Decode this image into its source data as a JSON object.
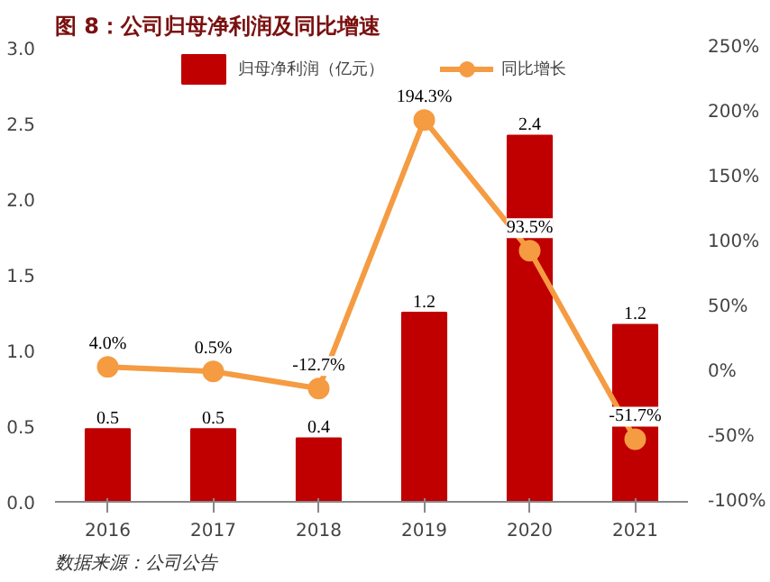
{
  "chart_data": {
    "type": "bar",
    "title": "图 8：公司归母净利润及同比增速",
    "categories": [
      "2016",
      "2017",
      "2018",
      "2019",
      "2020",
      "2021"
    ],
    "series": [
      {
        "name": "归母净利润（亿元）",
        "color": "#c00000",
        "values": [
          0.48,
          0.48,
          0.42,
          1.25,
          2.42,
          1.17
        ],
        "value_labels": [
          "0.5",
          "0.5",
          "0.4",
          "1.2",
          "2.4",
          "1.2"
        ]
      },
      {
        "name": "同比增长",
        "type": "line",
        "axis": "y2",
        "color": "#f59b42",
        "values": [
          4.0,
          0.5,
          -12.7,
          194.3,
          93.5,
          -51.7
        ],
        "value_labels": [
          "4.0%",
          "0.5%",
          "-12.7%",
          "194.3%",
          "93.5%",
          "-51.7%"
        ]
      }
    ],
    "ylim": [
      0,
      3.0
    ],
    "yticks": [
      {
        "value": 0,
        "label": "0.0"
      },
      {
        "value": 0.5,
        "label": "0.5"
      },
      {
        "value": 1.0,
        "label": "1.0"
      },
      {
        "value": 1.5,
        "label": "1.5"
      },
      {
        "value": 2.0,
        "label": "2.0"
      },
      {
        "value": 2.5,
        "label": "2.5"
      },
      {
        "value": 3.0,
        "label": "3.0"
      }
    ],
    "y2lim": [
      -100,
      250
    ],
    "y2ticks": [
      {
        "value": -100,
        "label": "-100%"
      },
      {
        "value": -50,
        "label": "-50%"
      },
      {
        "value": 0,
        "label": "0%"
      },
      {
        "value": 50,
        "label": "50%"
      },
      {
        "value": 100,
        "label": "100%"
      },
      {
        "value": 150,
        "label": "150%"
      },
      {
        "value": 200,
        "label": "200%"
      },
      {
        "value": 250,
        "label": "250%"
      }
    ],
    "marker": "circle",
    "line_style": "solid",
    "grid": false,
    "legend": "top",
    "annotations": [
      "数据来源：公司公告"
    ]
  }
}
